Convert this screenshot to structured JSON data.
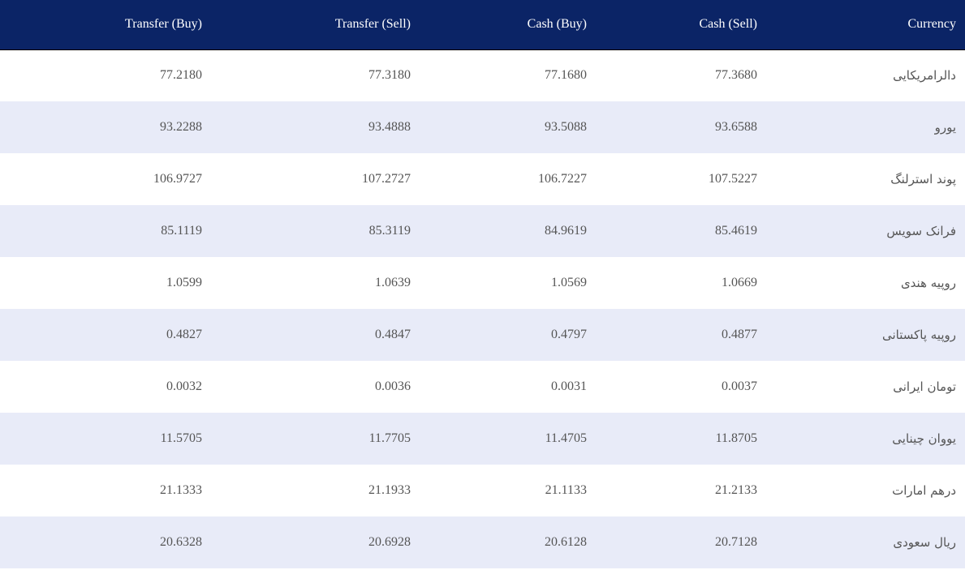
{
  "table": {
    "headers": {
      "transfer_buy": "Transfer (Buy)",
      "transfer_sell": "Transfer (Sell)",
      "cash_buy": "Cash (Buy)",
      "cash_sell": "Cash (Sell)",
      "currency": "Currency"
    },
    "rows": [
      {
        "transfer_buy": "77.2180",
        "transfer_sell": "77.3180",
        "cash_buy": "77.1680",
        "cash_sell": "77.3680",
        "currency": "دالرامریکایی"
      },
      {
        "transfer_buy": "93.2288",
        "transfer_sell": "93.4888",
        "cash_buy": "93.5088",
        "cash_sell": "93.6588",
        "currency": "یورو"
      },
      {
        "transfer_buy": "106.9727",
        "transfer_sell": "107.2727",
        "cash_buy": "106.7227",
        "cash_sell": "107.5227",
        "currency": "پوند استرلنگ"
      },
      {
        "transfer_buy": "85.1119",
        "transfer_sell": "85.3119",
        "cash_buy": "84.9619",
        "cash_sell": "85.4619",
        "currency": "فرانک سویس"
      },
      {
        "transfer_buy": "1.0599",
        "transfer_sell": "1.0639",
        "cash_buy": "1.0569",
        "cash_sell": "1.0669",
        "currency": "روپیه هندی"
      },
      {
        "transfer_buy": "0.4827",
        "transfer_sell": "0.4847",
        "cash_buy": "0.4797",
        "cash_sell": "0.4877",
        "currency": "روپیه پاکستانی"
      },
      {
        "transfer_buy": "0.0032",
        "transfer_sell": "0.0036",
        "cash_buy": "0.0031",
        "cash_sell": "0.0037",
        "currency": "تومان ایرانی"
      },
      {
        "transfer_buy": "11.5705",
        "transfer_sell": "11.7705",
        "cash_buy": "11.4705",
        "cash_sell": "11.8705",
        "currency": "یووان چینایی"
      },
      {
        "transfer_buy": "21.1333",
        "transfer_sell": "21.1933",
        "cash_buy": "21.1133",
        "cash_sell": "21.2133",
        "currency": "درهم امارات"
      },
      {
        "transfer_buy": "20.6328",
        "transfer_sell": "20.6928",
        "cash_buy": "20.6128",
        "cash_sell": "20.7128",
        "currency": "ریال سعودی"
      }
    ]
  },
  "colors": {
    "header_background": "#0b2466",
    "header_text": "#ffffff",
    "row_stripe": "#e8ebf8",
    "row_base": "#ffffff",
    "cell_text": "#555555"
  }
}
